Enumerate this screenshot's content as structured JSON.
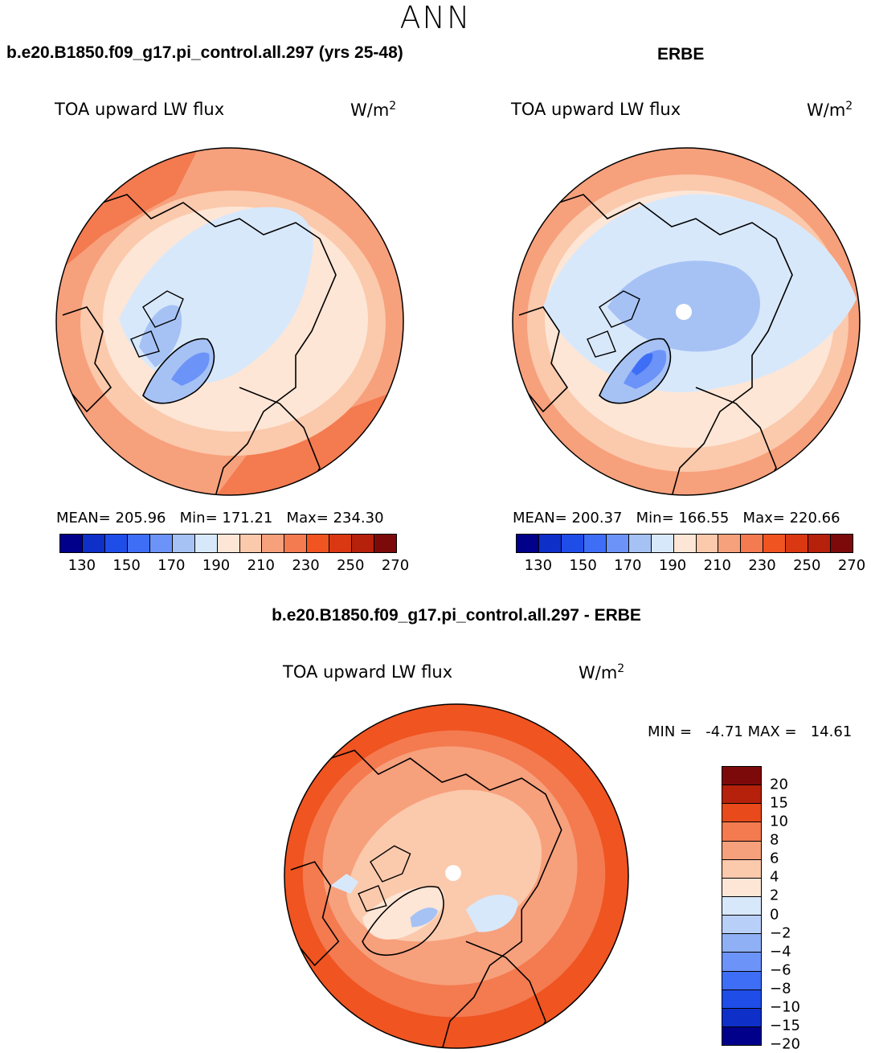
{
  "season": "ANN",
  "panels": [
    {
      "case_title": "b.e20.B1850.f09_g17.pi_control.all.297 (yrs 25-48)",
      "var_label": "TOA upward LW flux",
      "units_base": "W/m",
      "units_exp": "2",
      "stats": {
        "mean": "MEAN= 205.96",
        "min": "Min= 171.21",
        "max": "Max= 234.30"
      },
      "cbar_colors": [
        "#00008b",
        "#0e2fc8",
        "#1f4de8",
        "#3e6ef6",
        "#6c93f7",
        "#a6c2f5",
        "#d8e8fb",
        "#fde6d6",
        "#fbc9ac",
        "#f7a07c",
        "#f47a50",
        "#ef5421",
        "#d93812",
        "#b5210a",
        "#7d0a0a"
      ],
      "cbar_ticks": [
        "130",
        "150",
        "170",
        "190",
        "210",
        "230",
        "250",
        "270"
      ]
    },
    {
      "case_title": "ERBE",
      "var_label": "TOA upward LW flux",
      "units_base": "W/m",
      "units_exp": "2",
      "stats": {
        "mean": "MEAN= 200.37",
        "min": "Min= 166.55",
        "max": "Max= 220.66"
      },
      "cbar_colors": [
        "#00008b",
        "#0e2fc8",
        "#1f4de8",
        "#3e6ef6",
        "#6c93f7",
        "#a6c2f5",
        "#d8e8fb",
        "#fde6d6",
        "#fbc9ac",
        "#f7a07c",
        "#f47a50",
        "#ef5421",
        "#d93812",
        "#b5210a",
        "#7d0a0a"
      ],
      "cbar_ticks": [
        "130",
        "150",
        "170",
        "190",
        "210",
        "230",
        "250",
        "270"
      ]
    }
  ],
  "diff": {
    "case_title": "b.e20.B1850.f09_g17.pi_control.all.297 - ERBE",
    "var_label": "TOA upward LW flux",
    "units_base": "W/m",
    "units_exp": "2",
    "minmax": "MIN =   -4.71 MAX =   14.61",
    "cbar_colors": [
      "#7d0a0a",
      "#b5210a",
      "#e84a1b",
      "#f47a50",
      "#f7a07c",
      "#fbc9ac",
      "#fde6d6",
      "#d8e8fb",
      "#b8d0f7",
      "#8fb0f4",
      "#6c93f7",
      "#3e6ef6",
      "#1f4de8",
      "#0e2fc8",
      "#00008b"
    ],
    "cbar_ticks": [
      "20",
      "15",
      "10",
      "8",
      "6",
      "4",
      "2",
      "0",
      "-2",
      "-4",
      "-6",
      "-8",
      "-10",
      "-15",
      "-20"
    ]
  },
  "map_colors": {
    "warm_light": "#fde6d6",
    "warm_mid": "#fbc9ac",
    "warm": "#f7a07c",
    "warm_strong": "#f47a50",
    "hot": "#ef5421",
    "cool_light": "#d8e8fb",
    "cool_mid": "#a6c2f5",
    "cool": "#6c93f7",
    "cool_strong": "#3e6ef6"
  }
}
